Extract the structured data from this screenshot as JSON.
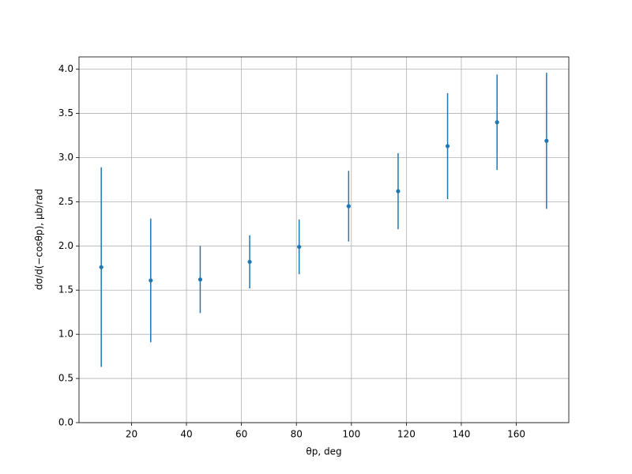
{
  "chart_data": {
    "type": "errorbar",
    "xlabel": "θp, deg",
    "ylabel": "dσ/d(−cosθp), μb/rad",
    "x": [
      9,
      27,
      45,
      63,
      81,
      99,
      117,
      135,
      153,
      171
    ],
    "series": [
      {
        "color": "#1f77b4",
        "values": [
          1.76,
          1.61,
          1.62,
          1.82,
          1.99,
          2.45,
          2.62,
          3.13,
          3.4,
          3.19
        ],
        "errors": [
          1.13,
          0.7,
          0.38,
          0.3,
          0.31,
          0.4,
          0.43,
          0.6,
          0.54,
          0.77
        ]
      }
    ],
    "xlim": [
      0.9,
      179.1
    ],
    "ylim": [
      0,
      4.14
    ],
    "xticks": [
      20,
      40,
      60,
      80,
      100,
      120,
      140,
      160
    ],
    "yticks": [
      {
        "value": 0,
        "label": "0.0"
      },
      {
        "value": 0.5,
        "label": "0.5"
      },
      {
        "value": 1,
        "label": "1.0"
      },
      {
        "value": 1.5,
        "label": "1.5"
      },
      {
        "value": 2,
        "label": "2.0"
      },
      {
        "value": 2.5,
        "label": "2.5"
      },
      {
        "value": 3,
        "label": "3.0"
      },
      {
        "value": 3.5,
        "label": "3.5"
      },
      {
        "value": 4,
        "label": "4.0"
      }
    ],
    "grid": true
  }
}
